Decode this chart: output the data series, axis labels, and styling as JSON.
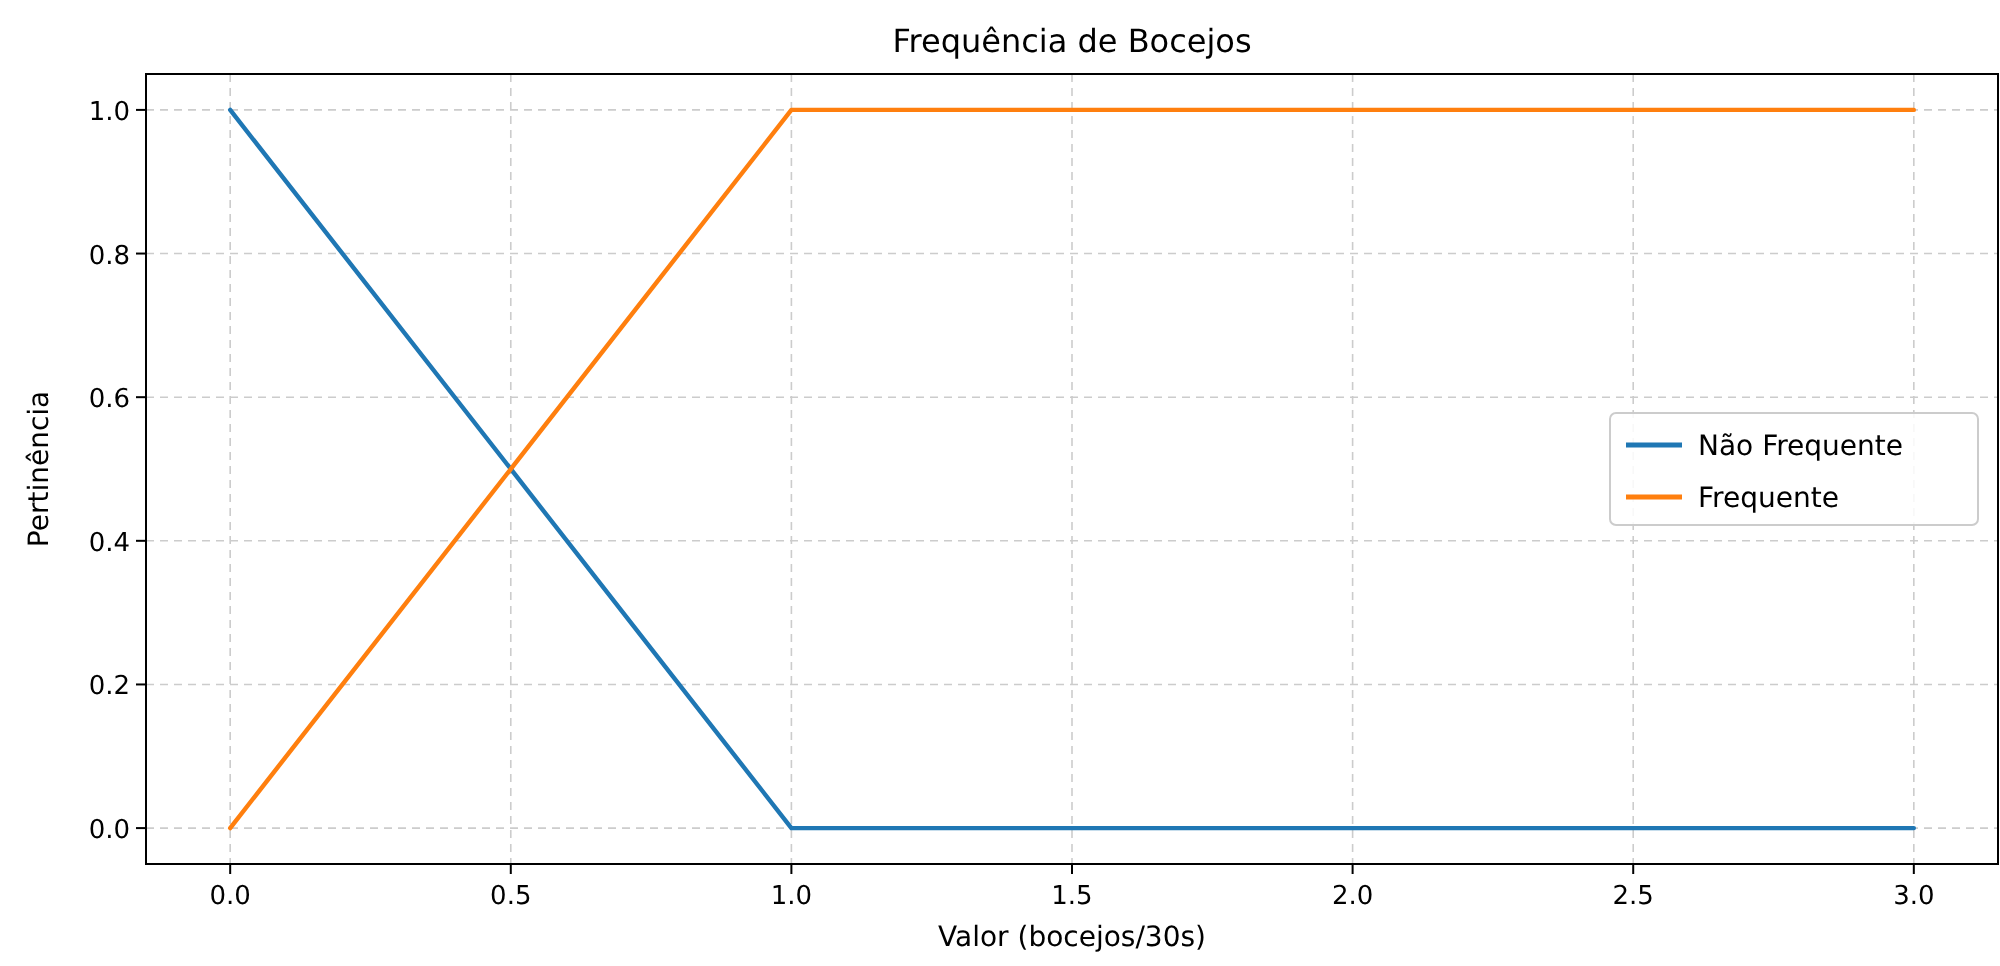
{
  "chart_data": {
    "type": "line",
    "title": "Frequência de Bocejos",
    "xlabel": "Valor (bocejos/30s)",
    "ylabel": "Pertinência",
    "series": [
      {
        "name": "Não Frequente",
        "color": "#1f77b4",
        "x": [
          0,
          1,
          3
        ],
        "values": [
          1,
          0,
          0
        ]
      },
      {
        "name": "Frequente",
        "color": "#ff7f0e",
        "x": [
          0,
          1,
          3
        ],
        "values": [
          0,
          1,
          1
        ]
      }
    ],
    "xlim": [
      -0.15,
      3.15
    ],
    "ylim": [
      -0.05,
      1.05
    ],
    "xticks": [
      {
        "value": 0,
        "label": "0.0"
      },
      {
        "value": 0.5,
        "label": "0.5"
      },
      {
        "value": 1,
        "label": "1.0"
      },
      {
        "value": 1.5,
        "label": "1.5"
      },
      {
        "value": 2,
        "label": "2.0"
      },
      {
        "value": 2.5,
        "label": "2.5"
      },
      {
        "value": 3,
        "label": "3.0"
      }
    ],
    "yticks": [
      {
        "value": 0,
        "label": "0.0"
      },
      {
        "value": 0.2,
        "label": "0.2"
      },
      {
        "value": 0.4,
        "label": "0.4"
      },
      {
        "value": 0.6,
        "label": "0.6"
      },
      {
        "value": 0.8,
        "label": "0.8"
      },
      {
        "value": 1,
        "label": "1.0"
      }
    ],
    "grid": true,
    "legend": "right",
    "line_style": "solid"
  }
}
